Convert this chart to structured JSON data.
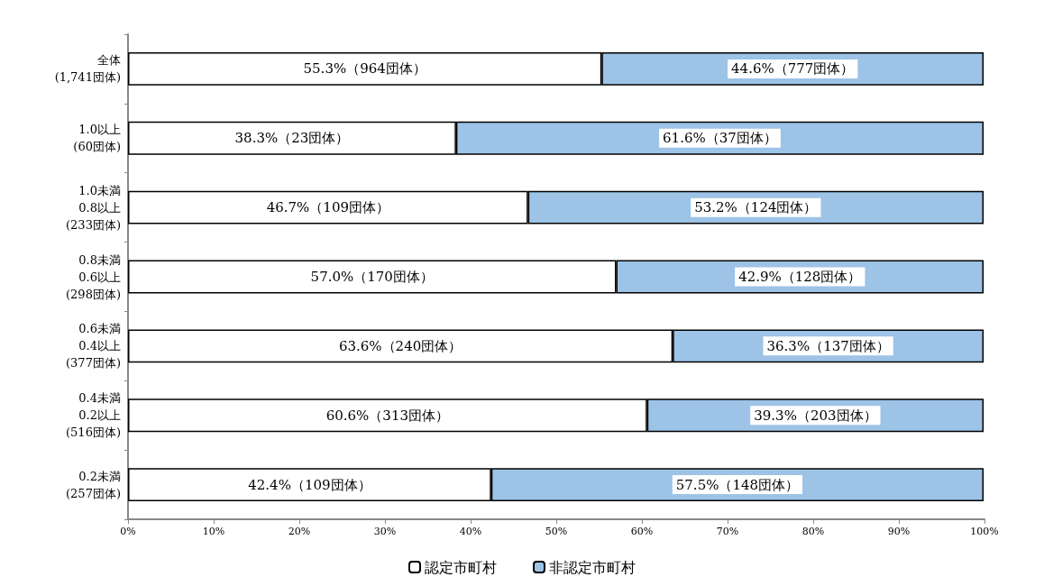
{
  "chart_data": {
    "type": "bar",
    "orientation": "horizontal",
    "stacked": true,
    "categories": [
      "全体\n(1,741団体)",
      "1.0以上\n(60団体)",
      "1.0未満\n0.8以上\n(233団体)",
      "0.8未満\n0.6以上\n(298団体)",
      "0.6未満\n0.4以上\n(377団体)",
      "0.4未満\n0.2以上\n(516団体)",
      "0.2未満\n(257団体)"
    ],
    "series": [
      {
        "name": "認定市町村",
        "color": "#ffffff",
        "values": [
          55.3,
          38.3,
          46.7,
          57.0,
          63.6,
          60.6,
          42.4
        ],
        "value_labels": [
          "55.3%（964団体）",
          "38.3%（23団体）",
          "46.7%（109団体）",
          "57.0%（170団体）",
          "63.6%（240団体）",
          "60.6%（313団体）",
          "42.4%（109団体）"
        ]
      },
      {
        "name": "非認定市町村",
        "color": "#9dc3e6",
        "values": [
          44.6,
          61.6,
          53.2,
          42.9,
          36.3,
          39.3,
          57.5
        ],
        "value_labels": [
          "44.6%（777団体）",
          "61.6%（37団体）",
          "53.2%（124団体）",
          "42.9%（128団体）",
          "36.3%（137団体）",
          "39.3%（203団体）",
          "57.5%（148団体）"
        ]
      }
    ],
    "xlim": [
      0,
      100
    ],
    "xticks": [
      {
        "value": 0,
        "label": "0%"
      },
      {
        "value": 10,
        "label": "10%"
      },
      {
        "value": 20,
        "label": "20%"
      },
      {
        "value": 30,
        "label": "30%"
      },
      {
        "value": 40,
        "label": "40%"
      },
      {
        "value": 50,
        "label": "50%"
      },
      {
        "value": 60,
        "label": "60%"
      },
      {
        "value": 70,
        "label": "70%"
      },
      {
        "value": 80,
        "label": "80%"
      },
      {
        "value": 90,
        "label": "90%"
      },
      {
        "value": 100,
        "label": "100%"
      }
    ],
    "grid": false,
    "legend": "bottom"
  }
}
